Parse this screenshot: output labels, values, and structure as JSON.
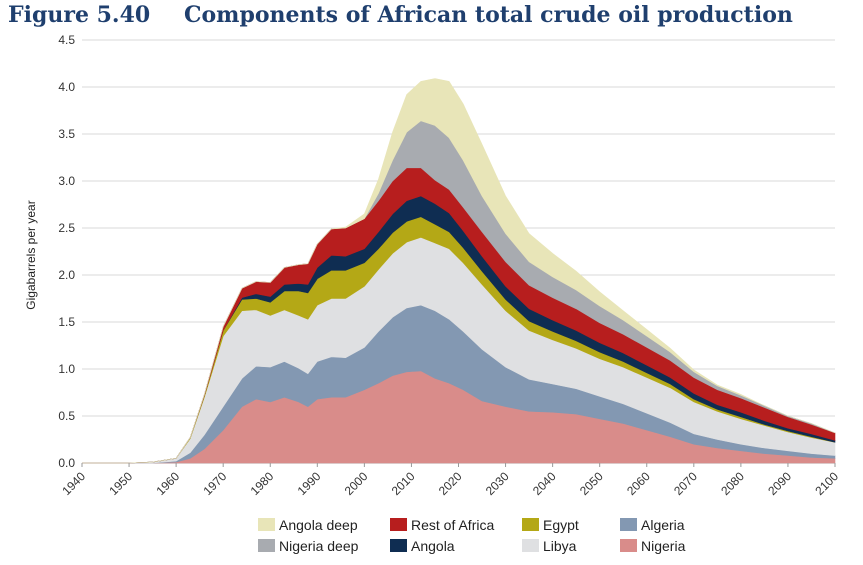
{
  "figure": {
    "number": "Figure 5.40",
    "title": "Components of African total crude oil production"
  },
  "chart_data": {
    "type": "area",
    "stacked": true,
    "ylabel": "Gigabarrels per year",
    "ylim": [
      0,
      4.5
    ],
    "yticks": [
      "0.0",
      "0.5",
      "1.0",
      "1.5",
      "2.0",
      "2.5",
      "3.0",
      "3.5",
      "4.0",
      "4.5"
    ],
    "xlim": [
      1940,
      2100
    ],
    "xticks": [
      "1940",
      "1950",
      "1960",
      "1970",
      "1980",
      "1990",
      "2000",
      "2010",
      "2020",
      "2030",
      "2040",
      "2050",
      "2060",
      "2070",
      "2080",
      "2090",
      "2100"
    ],
    "x": [
      1940,
      1950,
      1955,
      1960,
      1963,
      1966,
      1970,
      1974,
      1977,
      1980,
      1983,
      1986,
      1988,
      1990,
      1993,
      1996,
      2000,
      2003,
      2006,
      2009,
      2012,
      2015,
      2018,
      2021,
      2025,
      2030,
      2035,
      2040,
      2045,
      2050,
      2055,
      2060,
      2065,
      2070,
      2075,
      2080,
      2085,
      2090,
      2095,
      2100
    ],
    "series": [
      {
        "name": "Nigeria",
        "color": "#d98c8a",
        "values": [
          0,
          0,
          0,
          0.01,
          0.05,
          0.15,
          0.35,
          0.6,
          0.68,
          0.65,
          0.7,
          0.65,
          0.6,
          0.68,
          0.7,
          0.7,
          0.78,
          0.85,
          0.93,
          0.97,
          0.98,
          0.9,
          0.85,
          0.78,
          0.66,
          0.6,
          0.55,
          0.54,
          0.52,
          0.47,
          0.42,
          0.35,
          0.28,
          0.2,
          0.16,
          0.13,
          0.1,
          0.08,
          0.06,
          0.05
        ]
      },
      {
        "name": "Algeria",
        "color": "#8398b2",
        "values": [
          0,
          0,
          0,
          0.01,
          0.06,
          0.15,
          0.25,
          0.3,
          0.35,
          0.37,
          0.38,
          0.36,
          0.35,
          0.4,
          0.43,
          0.42,
          0.45,
          0.55,
          0.62,
          0.68,
          0.7,
          0.72,
          0.68,
          0.62,
          0.55,
          0.42,
          0.34,
          0.3,
          0.27,
          0.24,
          0.21,
          0.18,
          0.15,
          0.11,
          0.09,
          0.07,
          0.06,
          0.05,
          0.04,
          0.03
        ]
      },
      {
        "name": "Libya",
        "color": "#dfe0e2",
        "values": [
          0,
          0,
          0.01,
          0.03,
          0.15,
          0.4,
          0.75,
          0.72,
          0.6,
          0.55,
          0.55,
          0.56,
          0.58,
          0.6,
          0.62,
          0.63,
          0.65,
          0.66,
          0.68,
          0.7,
          0.72,
          0.72,
          0.75,
          0.73,
          0.69,
          0.6,
          0.52,
          0.47,
          0.43,
          0.4,
          0.39,
          0.38,
          0.37,
          0.34,
          0.3,
          0.27,
          0.24,
          0.2,
          0.17,
          0.14
        ]
      },
      {
        "name": "Egypt",
        "color": "#b4a816",
        "values": [
          0,
          0,
          0,
          0,
          0.01,
          0.02,
          0.06,
          0.12,
          0.12,
          0.14,
          0.2,
          0.26,
          0.28,
          0.28,
          0.3,
          0.3,
          0.25,
          0.22,
          0.22,
          0.22,
          0.22,
          0.2,
          0.18,
          0.16,
          0.14,
          0.12,
          0.1,
          0.09,
          0.08,
          0.07,
          0.06,
          0.05,
          0.04,
          0.03,
          0.02,
          0.02,
          0.01,
          0.01,
          0.01,
          0
        ]
      },
      {
        "name": "Angola",
        "color": "#0f2d52",
        "values": [
          0,
          0,
          0,
          0,
          0,
          0,
          0,
          0.02,
          0.05,
          0.06,
          0.07,
          0.08,
          0.09,
          0.12,
          0.16,
          0.15,
          0.15,
          0.18,
          0.2,
          0.22,
          0.22,
          0.22,
          0.2,
          0.18,
          0.16,
          0.14,
          0.13,
          0.12,
          0.11,
          0.1,
          0.09,
          0.08,
          0.07,
          0.06,
          0.05,
          0.05,
          0.04,
          0.03,
          0.03,
          0.02
        ]
      },
      {
        "name": "Rest of Africa",
        "color": "#b71e1e",
        "values": [
          0,
          0,
          0,
          0,
          0,
          0.01,
          0.04,
          0.1,
          0.13,
          0.15,
          0.18,
          0.2,
          0.22,
          0.25,
          0.28,
          0.3,
          0.32,
          0.33,
          0.35,
          0.35,
          0.3,
          0.25,
          0.25,
          0.25,
          0.26,
          0.26,
          0.25,
          0.24,
          0.23,
          0.21,
          0.2,
          0.19,
          0.18,
          0.17,
          0.16,
          0.15,
          0.14,
          0.12,
          0.1,
          0.08
        ]
      },
      {
        "name": "Nigeria deep",
        "color": "#a8abb0",
        "values": [
          0,
          0,
          0,
          0,
          0,
          0,
          0,
          0,
          0,
          0,
          0,
          0,
          0,
          0,
          0,
          0,
          0,
          0.08,
          0.22,
          0.38,
          0.5,
          0.58,
          0.55,
          0.5,
          0.38,
          0.3,
          0.25,
          0.22,
          0.2,
          0.18,
          0.15,
          0.12,
          0.09,
          0.06,
          0.04,
          0.03,
          0.02,
          0.01,
          0.01,
          0
        ]
      },
      {
        "name": "Angola deep",
        "color": "#e8e5b8",
        "values": [
          0,
          0,
          0,
          0,
          0,
          0,
          0,
          0,
          0,
          0,
          0,
          0,
          0,
          0,
          0,
          0.01,
          0.05,
          0.15,
          0.3,
          0.4,
          0.42,
          0.5,
          0.6,
          0.6,
          0.55,
          0.4,
          0.3,
          0.25,
          0.2,
          0.15,
          0.1,
          0.07,
          0.04,
          0.02,
          0.01,
          0.01,
          0,
          0,
          0,
          0
        ]
      }
    ],
    "legend": {
      "placement": "bottom",
      "order": [
        "Angola deep",
        "Rest of Africa",
        "Egypt",
        "Algeria",
        "Nigeria deep",
        "Angola",
        "Libya",
        "Nigeria"
      ]
    },
    "grid": true
  }
}
